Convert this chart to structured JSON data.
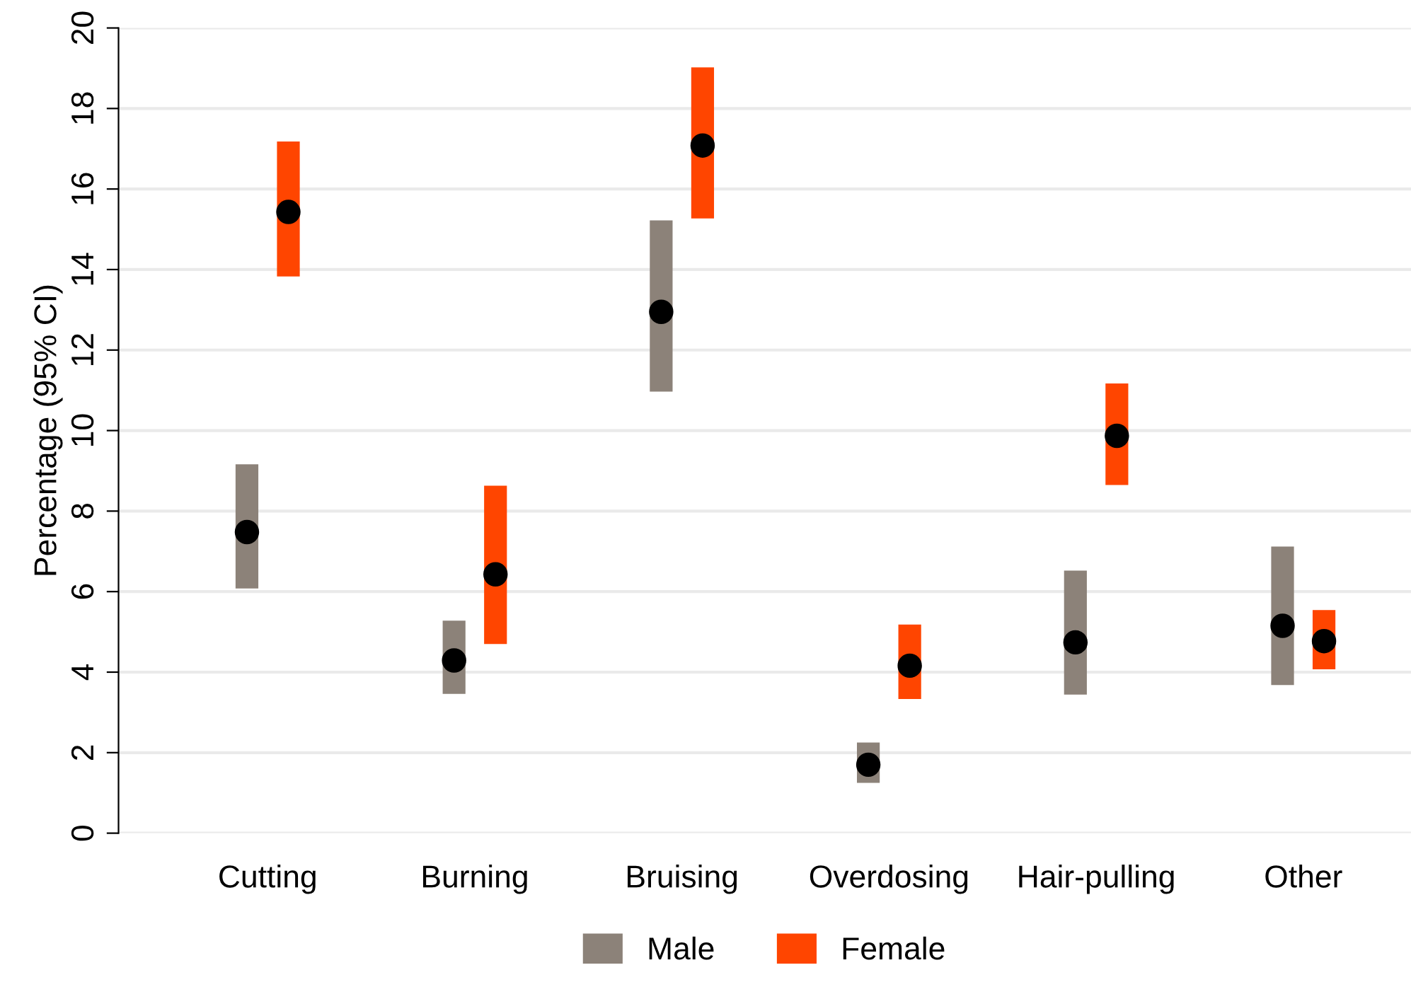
{
  "chart_data": {
    "type": "bar",
    "ylabel": "Percentage (95% CI)",
    "categories": [
      "Cutting",
      "Burning",
      "Bruising",
      "Overdosing",
      "Hair-pulling",
      "Other"
    ],
    "series": [
      {
        "name": "Male",
        "color": "#8c8279",
        "base": [
          6.08,
          3.46,
          10.97,
          1.25,
          3.44,
          3.68
        ],
        "values": [
          3.08,
          1.82,
          4.25,
          1.0,
          3.08,
          3.44
        ]
      },
      {
        "name": "Female",
        "color": "#ff4500",
        "base": [
          13.83,
          4.7,
          15.27,
          3.33,
          8.65,
          4.07
        ],
        "values": [
          3.35,
          3.93,
          3.75,
          1.85,
          2.52,
          1.47
        ]
      },
      {
        "type": "scatter",
        "color": "#000000",
        "x": [
          "Cutting",
          "Burning",
          "Bruising",
          "Overdosing",
          "Hair-pulling",
          "Other"
        ],
        "values": [
          7.48,
          4.29,
          12.95,
          1.7,
          4.74,
          5.15
        ]
      },
      {
        "type": "scatter",
        "color": "#000000",
        "x": [
          "Cutting",
          "Burning",
          "Bruising",
          "Overdosing",
          "Hair-pulling",
          "Other"
        ],
        "values": [
          15.43,
          6.43,
          17.08,
          4.16,
          9.87,
          4.77
        ]
      }
    ],
    "ylim": [
      0,
      20
    ],
    "yticks": [
      0,
      2,
      4,
      6,
      8,
      10,
      12,
      14,
      16,
      18,
      20
    ],
    "grid": "y",
    "legend": "bottom",
    "marker": "circle"
  }
}
